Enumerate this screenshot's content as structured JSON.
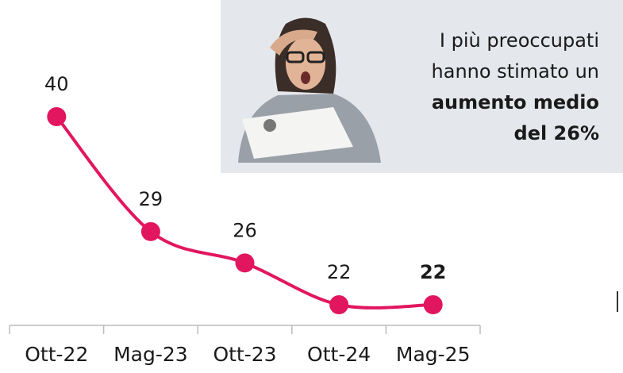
{
  "chart_data": {
    "type": "line",
    "categories": [
      "Ott-22",
      "Mag-23",
      "Ott-23",
      "Ott-24",
      "Mag-25"
    ],
    "values": [
      40,
      29,
      26,
      22,
      22
    ],
    "color": "#e2165e",
    "annotation": [
      "I più preoccupati",
      "hanno stimato un"
    ],
    "annotation_bold": [
      "aumento medio",
      "del 26%"
    ]
  }
}
